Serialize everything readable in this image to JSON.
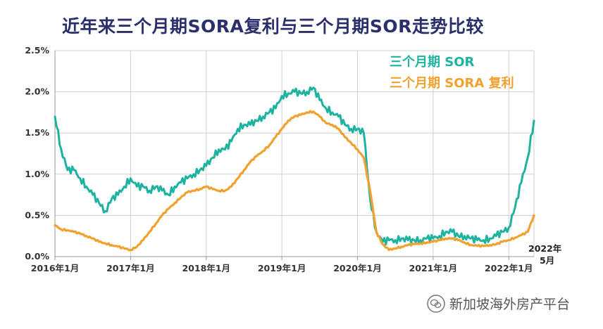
{
  "chart_data": {
    "type": "line",
    "title": "近年来三个月期SORA复利与三个月期SOR走势比较",
    "xlabel": "",
    "ylabel": "",
    "ylim": [
      0,
      2.5
    ],
    "xlim": [
      "2016-01",
      "2022-05"
    ],
    "y_ticks": [
      "0.0%",
      "0.5%",
      "1.0%",
      "1.5%",
      "2.0%",
      "2.5%"
    ],
    "y_tick_values": [
      0,
      0.5,
      1.0,
      1.5,
      2.0,
      2.5
    ],
    "x_ticks": [
      "2016年1月",
      "2017年1月",
      "2018年1月",
      "2019年1月",
      "2020年1月",
      "2021年1月",
      "2022年1月"
    ],
    "x_tick_dates": [
      "2016-01",
      "2017-01",
      "2018-01",
      "2019-01",
      "2020-01",
      "2021-01",
      "2022-01"
    ],
    "end_label_line1": "2022年",
    "end_label_line2": "5月",
    "grid": true,
    "legend_position": "top-right",
    "series": [
      {
        "name": "三个月期 SOR",
        "color": "#1db3a0",
        "x": [
          "2016-01",
          "2016-02",
          "2016-03",
          "2016-04",
          "2016-05",
          "2016-06",
          "2016-07",
          "2016-08",
          "2016-09",
          "2016-10",
          "2016-11",
          "2016-12",
          "2017-01",
          "2017-02",
          "2017-03",
          "2017-04",
          "2017-05",
          "2017-06",
          "2017-07",
          "2017-08",
          "2017-09",
          "2017-10",
          "2017-11",
          "2017-12",
          "2018-01",
          "2018-02",
          "2018-03",
          "2018-04",
          "2018-05",
          "2018-06",
          "2018-07",
          "2018-08",
          "2018-09",
          "2018-10",
          "2018-11",
          "2018-12",
          "2019-01",
          "2019-02",
          "2019-03",
          "2019-04",
          "2019-05",
          "2019-06",
          "2019-07",
          "2019-08",
          "2019-09",
          "2019-10",
          "2019-11",
          "2019-12",
          "2020-01",
          "2020-02",
          "2020-03",
          "2020-04",
          "2020-05",
          "2020-06",
          "2020-07",
          "2020-08",
          "2020-09",
          "2020-10",
          "2020-11",
          "2020-12",
          "2021-01",
          "2021-02",
          "2021-03",
          "2021-04",
          "2021-05",
          "2021-06",
          "2021-07",
          "2021-08",
          "2021-09",
          "2021-10",
          "2021-11",
          "2021-12",
          "2022-01",
          "2022-02",
          "2022-03",
          "2022-04",
          "2022-05"
        ],
        "values": [
          1.7,
          1.3,
          1.05,
          1.05,
          0.95,
          0.85,
          0.75,
          0.65,
          0.55,
          0.7,
          0.75,
          0.85,
          0.95,
          0.85,
          0.85,
          0.8,
          0.85,
          0.8,
          0.75,
          0.85,
          0.9,
          0.95,
          1.0,
          1.05,
          1.1,
          1.2,
          1.3,
          1.3,
          1.4,
          1.55,
          1.6,
          1.6,
          1.65,
          1.7,
          1.75,
          1.8,
          1.95,
          1.98,
          2.0,
          1.98,
          2.0,
          2.05,
          1.9,
          1.8,
          1.75,
          1.7,
          1.6,
          1.55,
          1.55,
          1.5,
          0.7,
          0.3,
          0.18,
          0.2,
          0.2,
          0.22,
          0.2,
          0.2,
          0.2,
          0.22,
          0.22,
          0.25,
          0.3,
          0.3,
          0.25,
          0.25,
          0.22,
          0.2,
          0.2,
          0.22,
          0.25,
          0.3,
          0.35,
          0.6,
          0.9,
          1.2,
          1.65
        ]
      },
      {
        "name": "三个月期 SORA 复利",
        "color": "#f0a12e",
        "x": [
          "2016-01",
          "2016-02",
          "2016-03",
          "2016-04",
          "2016-05",
          "2016-06",
          "2016-07",
          "2016-08",
          "2016-09",
          "2016-10",
          "2016-11",
          "2016-12",
          "2017-01",
          "2017-02",
          "2017-03",
          "2017-04",
          "2017-05",
          "2017-06",
          "2017-07",
          "2017-08",
          "2017-09",
          "2017-10",
          "2017-11",
          "2017-12",
          "2018-01",
          "2018-02",
          "2018-03",
          "2018-04",
          "2018-05",
          "2018-06",
          "2018-07",
          "2018-08",
          "2018-09",
          "2018-10",
          "2018-11",
          "2018-12",
          "2019-01",
          "2019-02",
          "2019-03",
          "2019-04",
          "2019-05",
          "2019-06",
          "2019-07",
          "2019-08",
          "2019-09",
          "2019-10",
          "2019-11",
          "2019-12",
          "2020-01",
          "2020-02",
          "2020-03",
          "2020-04",
          "2020-05",
          "2020-06",
          "2020-07",
          "2020-08",
          "2020-09",
          "2020-10",
          "2020-11",
          "2020-12",
          "2021-01",
          "2021-02",
          "2021-03",
          "2021-04",
          "2021-05",
          "2021-06",
          "2021-07",
          "2021-08",
          "2021-09",
          "2021-10",
          "2021-11",
          "2021-12",
          "2022-01",
          "2022-02",
          "2022-03",
          "2022-04",
          "2022-05"
        ],
        "values": [
          0.38,
          0.33,
          0.32,
          0.3,
          0.28,
          0.25,
          0.22,
          0.18,
          0.16,
          0.14,
          0.12,
          0.1,
          0.08,
          0.12,
          0.2,
          0.3,
          0.4,
          0.5,
          0.58,
          0.65,
          0.72,
          0.78,
          0.8,
          0.82,
          0.85,
          0.82,
          0.8,
          0.8,
          0.85,
          0.95,
          1.05,
          1.15,
          1.22,
          1.28,
          1.35,
          1.45,
          1.55,
          1.65,
          1.7,
          1.72,
          1.75,
          1.76,
          1.7,
          1.62,
          1.6,
          1.55,
          1.45,
          1.38,
          1.3,
          1.2,
          0.8,
          0.3,
          0.15,
          0.08,
          0.1,
          0.12,
          0.14,
          0.15,
          0.16,
          0.17,
          0.18,
          0.2,
          0.22,
          0.22,
          0.2,
          0.17,
          0.14,
          0.13,
          0.13,
          0.14,
          0.15,
          0.18,
          0.2,
          0.23,
          0.26,
          0.3,
          0.5
        ]
      }
    ]
  },
  "watermark_text": "新加坡海外房产平台",
  "watermark_icon": "wechat-icon"
}
